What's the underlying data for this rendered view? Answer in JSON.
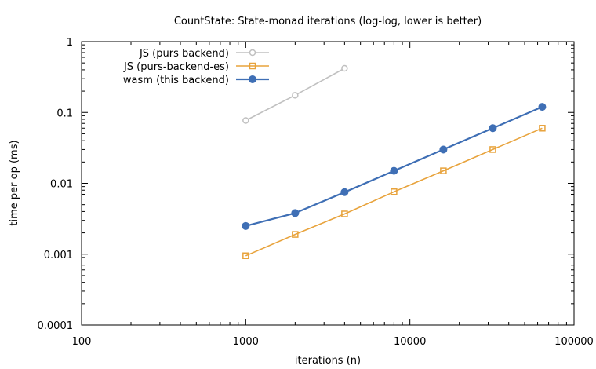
{
  "chart_data": {
    "type": "line",
    "title": "CountState: State-monad iterations   (log-log, lower is better)",
    "xlabel": "iterations (n)",
    "ylabel": "time per op (ms)",
    "xscale": "log",
    "yscale": "log",
    "xlim": [
      100,
      100000
    ],
    "ylim": [
      0.0001,
      1
    ],
    "xticks": [
      100,
      1000,
      10000,
      100000
    ],
    "xtick_labels": [
      "100",
      "1000",
      "10000",
      "100000"
    ],
    "yticks": [
      0.0001,
      0.001,
      0.01,
      0.1,
      1
    ],
    "ytick_labels": [
      "0.0001",
      "0.001",
      "0.01",
      "0.1",
      "1"
    ],
    "grid": false,
    "legend_position": "top-left",
    "series": [
      {
        "name": "JS (purs backend)",
        "color": "#c0c0c0",
        "marker": "circle-open",
        "x": [
          1000,
          2000,
          4000
        ],
        "y": [
          0.077,
          0.175,
          0.42
        ]
      },
      {
        "name": "JS (purs-backend-es)",
        "color": "#e8a33c",
        "marker": "square-open",
        "x": [
          1000,
          2000,
          4000,
          8000,
          16000,
          32000,
          64000
        ],
        "y": [
          0.00095,
          0.0019,
          0.0037,
          0.0076,
          0.015,
          0.03,
          0.06
        ]
      },
      {
        "name": "wasm (this backend)",
        "color": "#3f6fb5",
        "marker": "circle-filled",
        "x": [
          1000,
          2000,
          4000,
          8000,
          16000,
          32000,
          64000
        ],
        "y": [
          0.0025,
          0.0038,
          0.0075,
          0.015,
          0.03,
          0.06,
          0.12
        ]
      }
    ]
  }
}
